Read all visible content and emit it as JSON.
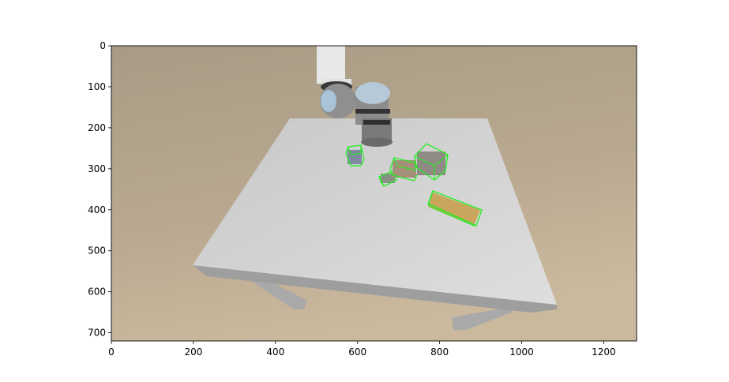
{
  "plot": {
    "x_ticks": [
      "0",
      "200",
      "400",
      "600",
      "800",
      "1000",
      "1200"
    ],
    "y_ticks": [
      "0",
      "100",
      "200",
      "300",
      "400",
      "500",
      "600",
      "700"
    ],
    "x_tick_values": [
      0,
      200,
      400,
      600,
      800,
      1000,
      1200
    ],
    "y_tick_values": [
      0,
      100,
      200,
      300,
      400,
      500,
      600,
      700
    ],
    "x_range": [
      0,
      1280
    ],
    "y_range": [
      720,
      0
    ]
  },
  "scene": {
    "background_color": "#b8a890",
    "table_color": "#d4d4d4",
    "box_outline_color": "#22ee22",
    "robot_arm_color": "#8a8a8a",
    "robot_joint_color": "#a9c4d8"
  }
}
